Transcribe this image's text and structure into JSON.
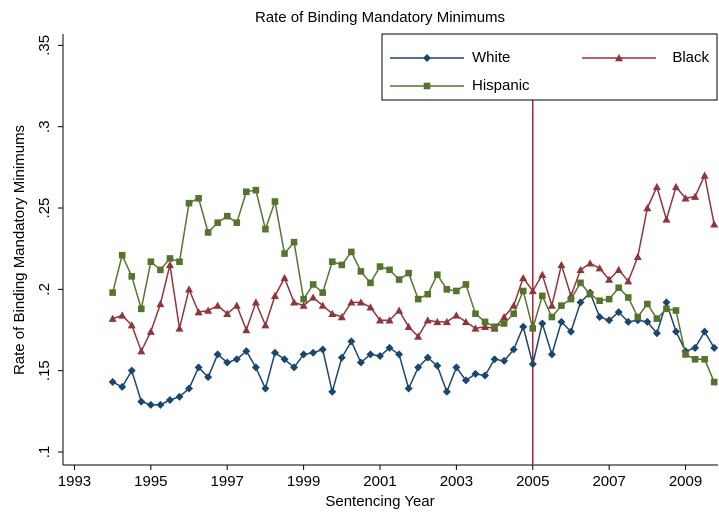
{
  "chart_data": {
    "type": "line",
    "title": "Rate of Binding Mandatory Minimums",
    "x_label": "Sentencing Year",
    "y_label": "Rate of Binding Mandatory Minimums",
    "x": [
      1994,
      1994.25,
      1994.5,
      1994.75,
      1995,
      1995.25,
      1995.5,
      1995.75,
      1996,
      1996.25,
      1996.5,
      1996.75,
      1997,
      1997.25,
      1997.5,
      1997.75,
      1998,
      1998.25,
      1998.5,
      1998.75,
      1999,
      1999.25,
      1999.5,
      1999.75,
      2000,
      2000.25,
      2000.5,
      2000.75,
      2001,
      2001.25,
      2001.5,
      2001.75,
      2002,
      2002.25,
      2002.5,
      2002.75,
      2003,
      2003.25,
      2003.5,
      2003.75,
      2004,
      2004.25,
      2004.5,
      2004.75,
      2005,
      2005.25,
      2005.5,
      2005.75,
      2006,
      2006.25,
      2006.5,
      2006.75,
      2007,
      2007.25,
      2007.5,
      2007.75,
      2008,
      2008.25,
      2008.5,
      2008.75,
      2009,
      2009.25,
      2009.5,
      2009.75
    ],
    "series": [
      {
        "name": "White",
        "color": "#1a476f",
        "marker": "diamond",
        "values": [
          0.143,
          0.14,
          0.15,
          0.131,
          0.129,
          0.129,
          0.132,
          0.134,
          0.139,
          0.152,
          0.146,
          0.16,
          0.155,
          0.157,
          0.162,
          0.152,
          0.139,
          0.161,
          0.157,
          0.152,
          0.16,
          0.161,
          0.163,
          0.137,
          0.158,
          0.168,
          0.155,
          0.16,
          0.159,
          0.164,
          0.16,
          0.139,
          0.152,
          0.158,
          0.153,
          0.137,
          0.152,
          0.144,
          0.148,
          0.147,
          0.157,
          0.156,
          0.163,
          0.177,
          0.154,
          0.179,
          0.16,
          0.18,
          0.174,
          0.192,
          0.198,
          0.183,
          0.181,
          0.186,
          0.18,
          0.181,
          0.18,
          0.173,
          0.192,
          0.174,
          0.162,
          0.164,
          0.174,
          0.164
        ]
      },
      {
        "name": "Black",
        "color": "#90353b",
        "marker": "triangle",
        "values": [
          0.182,
          0.184,
          0.178,
          0.162,
          0.174,
          0.191,
          0.215,
          0.176,
          0.2,
          0.186,
          0.187,
          0.19,
          0.185,
          0.19,
          0.175,
          0.192,
          0.178,
          0.196,
          0.207,
          0.192,
          0.19,
          0.195,
          0.19,
          0.185,
          0.183,
          0.192,
          0.192,
          0.189,
          0.181,
          0.181,
          0.187,
          0.177,
          0.171,
          0.181,
          0.18,
          0.18,
          0.184,
          0.18,
          0.176,
          0.177,
          0.176,
          0.183,
          0.19,
          0.207,
          0.199,
          0.209,
          0.19,
          0.215,
          0.196,
          0.212,
          0.216,
          0.213,
          0.206,
          0.212,
          0.205,
          0.22,
          0.25,
          0.263,
          0.243,
          0.263,
          0.256,
          0.257,
          0.27,
          0.24
        ]
      },
      {
        "name": "Hispanic",
        "color": "#55752f",
        "marker": "square",
        "values": [
          0.198,
          0.221,
          0.208,
          0.188,
          0.217,
          0.212,
          0.219,
          0.217,
          0.253,
          0.256,
          0.235,
          0.241,
          0.245,
          0.241,
          0.26,
          0.261,
          0.237,
          0.254,
          0.222,
          0.229,
          0.194,
          0.203,
          0.198,
          0.217,
          0.215,
          0.223,
          0.211,
          0.204,
          0.214,
          0.212,
          0.206,
          0.21,
          0.194,
          0.197,
          0.209,
          0.2,
          0.199,
          0.203,
          0.185,
          0.18,
          0.177,
          0.179,
          0.185,
          0.199,
          0.176,
          0.196,
          0.183,
          0.19,
          0.194,
          0.204,
          0.197,
          0.193,
          0.194,
          0.201,
          0.195,
          0.183,
          0.191,
          0.182,
          0.188,
          0.187,
          0.16,
          0.157,
          0.157,
          0.143
        ]
      }
    ],
    "vline": 2005,
    "vline_color": "#b41e3c",
    "xlim": [
      1992.7,
      2009.85
    ],
    "xticks": [
      1993,
      1995,
      1997,
      1999,
      2001,
      2003,
      2005,
      2007,
      2009
    ],
    "ylim": [
      0.092,
      0.357
    ],
    "yticks": [
      {
        "value": 0.1,
        "label": ".1"
      },
      {
        "value": 0.15,
        "label": ".15"
      },
      {
        "value": 0.2,
        "label": ".2"
      },
      {
        "value": 0.25,
        "label": ".25"
      },
      {
        "value": 0.3,
        "label": ".3"
      },
      {
        "value": 0.35,
        "label": ".35"
      }
    ],
    "legend": "top-right"
  }
}
